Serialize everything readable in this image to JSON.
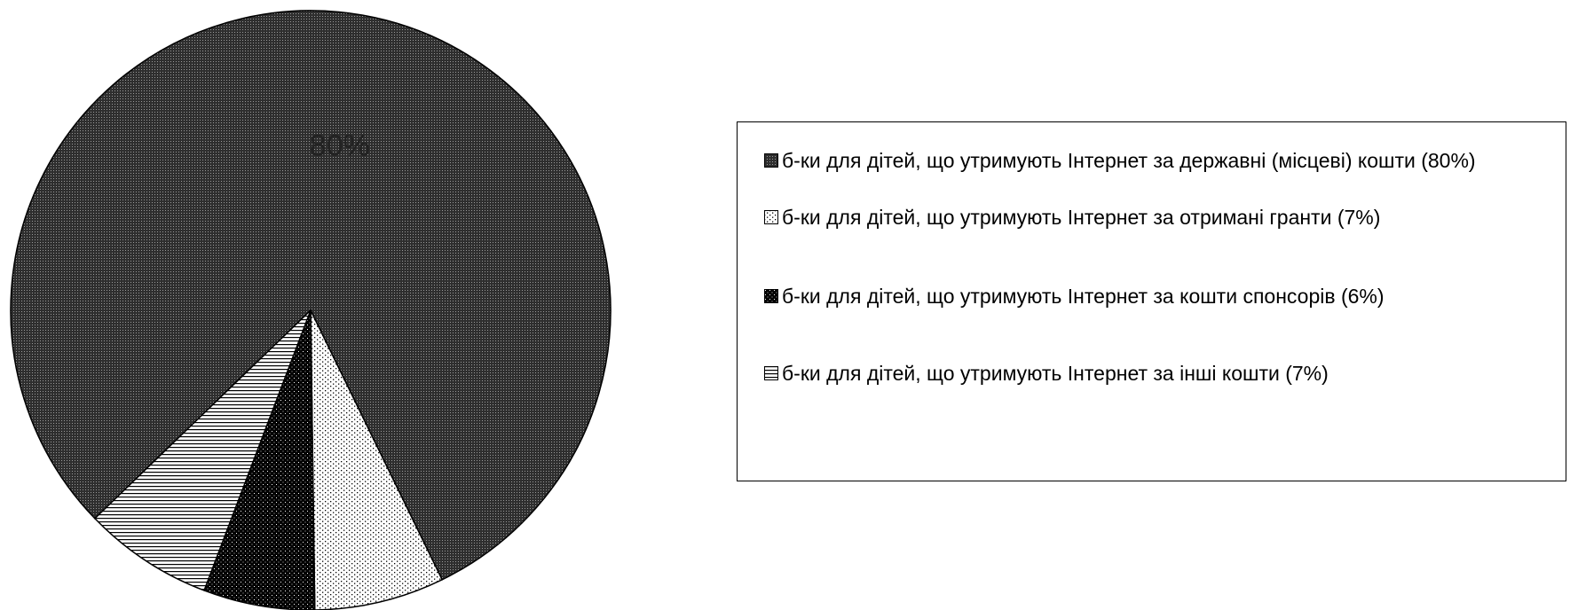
{
  "chart_data": {
    "type": "pie",
    "categories": [
      "б-ки для дітей, що утримують Інтернет за державні (місцеві) кошти (80%)",
      "б-ки для дітей, що утримують Інтернет за отримані гранти (7%)",
      "б-ки для дітей, що утримують Інтернет за кошти спонсорів (6%)",
      "б-ки для дітей, що утримують Інтернет за інші кошти (7%)"
    ],
    "values": [
      80,
      7,
      6,
      7
    ],
    "data_labels": [
      "80%",
      "",
      "",
      ""
    ],
    "legend_position": "right",
    "patterns": [
      "dense-dots-dark",
      "sparse-dots-light",
      "medium-dots-dark",
      "horizontal-lines"
    ]
  },
  "legend": {
    "items": [
      {
        "label": "б-ки для дітей, що утримують Інтернет за державні (місцеві) кошти (80%)"
      },
      {
        "label": "б-ки для дітей, що утримують Інтернет за отримані гранти (7%)"
      },
      {
        "label": "б-ки для дітей, що утримують Інтернет за кошти спонсорів (6%)"
      },
      {
        "label": "б-ки для дітей, що утримують Інтернет за інші кошти (7%)"
      }
    ]
  }
}
